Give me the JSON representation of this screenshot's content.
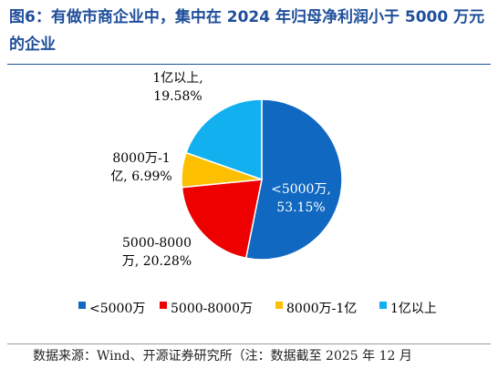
{
  "header": {
    "title": "图6：有做市商企业中，集中在 2024 年归母净利润小于 5000 万元的企业"
  },
  "footer": {
    "source": "数据来源：Wind、开源证券研究所（注：数据截至 2025 年 12 月"
  },
  "chart_data": {
    "type": "pie",
    "title": "",
    "legend_position": "bottom",
    "slices": [
      {
        "name": "<5000万",
        "value": 53.15,
        "color": "#1068c0",
        "label_lines": [
          "<5000万,",
          "53.15%"
        ]
      },
      {
        "name": "5000-8000万",
        "value": 20.28,
        "color": "#ee0000",
        "label_lines": [
          "5000-8000",
          "万, 20.28%"
        ]
      },
      {
        "name": "8000万-1亿",
        "value": 6.99,
        "color": "#fcc000",
        "label_lines": [
          "8000万-1",
          "亿, 6.99%"
        ]
      },
      {
        "name": "1亿以上",
        "value": 19.58,
        "color": "#12b0ee",
        "label_lines": [
          "1亿以上,",
          "19.58%"
        ]
      }
    ]
  }
}
